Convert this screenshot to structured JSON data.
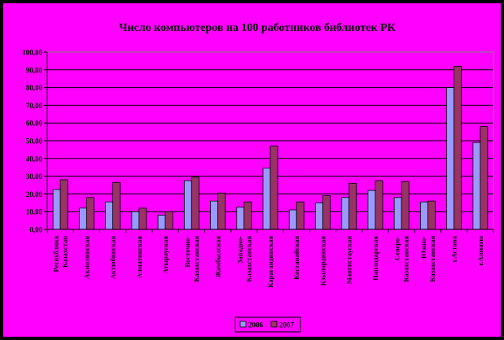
{
  "chart_data": {
    "type": "bar",
    "title": "Число компьютеров на 100 работников библиотек РК",
    "ylim": [
      0,
      100
    ],
    "yticks": [
      "0,00",
      "10,00",
      "20,00",
      "30,00",
      "40,00",
      "50,00",
      "60,00",
      "70,00",
      "80,00",
      "90,00",
      "100,00"
    ],
    "categories": [
      [
        "Республика",
        "Казахстан"
      ],
      [
        "Акмолинская"
      ],
      [
        "Актюбинская"
      ],
      [
        "Алматинская"
      ],
      [
        "Атырауская"
      ],
      [
        "Восточно-",
        "Казахстанская"
      ],
      [
        "Жамбылская"
      ],
      [
        "Западно-",
        "Казахстанская"
      ],
      [
        "Карагандинская"
      ],
      [
        "Костанайская"
      ],
      [
        "Кзылординская"
      ],
      [
        "Мангистауская"
      ],
      [
        "Павлодарская"
      ],
      [
        "Северо-",
        "Казахстанская"
      ],
      [
        "Южно-",
        "Казахстанская"
      ],
      [
        "г.Астана"
      ],
      [
        "г.Алматы"
      ]
    ],
    "series": [
      {
        "name": "2006",
        "color": "#9999ff",
        "values": [
          22.5,
          12,
          15.5,
          10,
          8,
          27.5,
          16,
          12.5,
          34.5,
          11,
          15,
          18,
          22,
          18,
          15.5,
          80,
          49
        ]
      },
      {
        "name": "2007",
        "color": "#993366",
        "values": [
          28,
          18,
          26.5,
          12,
          10,
          29.5,
          20.5,
          15.5,
          47,
          15.5,
          19,
          26,
          27.5,
          27,
          16,
          92,
          58
        ]
      }
    ],
    "grid": true,
    "legend": "bottom",
    "background": "#ff00ff",
    "plot_background": "#ff00ff"
  }
}
